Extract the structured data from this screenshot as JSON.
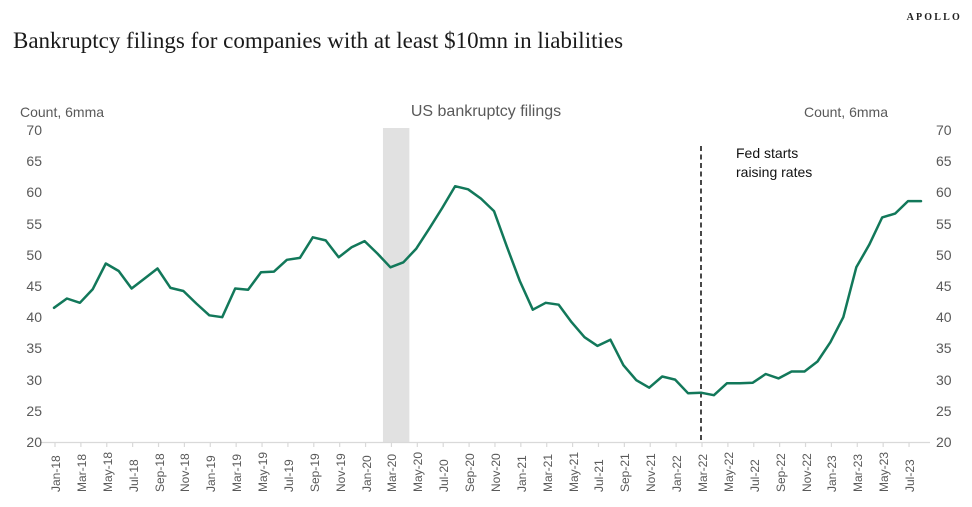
{
  "page": {
    "logo": "APOLLO",
    "title": "Bankruptcy filings for companies with at least $10mn in liabilities"
  },
  "chart": {
    "title": "US bankruptcy filings",
    "left_axis_label": "Count, 6mma",
    "right_axis_label": "Count, 6mma",
    "annotation": {
      "line1": "Fed starts",
      "line2": "raising rates"
    }
  },
  "chart_data": {
    "type": "line",
    "title": "US bankruptcy filings",
    "ylabel": "Count, 6mma",
    "ylim": [
      20,
      70
    ],
    "dual_y_axis": true,
    "grid": false,
    "line_color": "#12785A",
    "x": [
      "Jan-18",
      "Feb-18",
      "Mar-18",
      "Apr-18",
      "May-18",
      "Jun-18",
      "Jul-18",
      "Aug-18",
      "Sep-18",
      "Oct-18",
      "Nov-18",
      "Dec-18",
      "Jan-19",
      "Feb-19",
      "Mar-19",
      "Apr-19",
      "May-19",
      "Jun-19",
      "Jul-19",
      "Aug-19",
      "Sep-19",
      "Oct-19",
      "Nov-19",
      "Dec-19",
      "Jan-20",
      "Feb-20",
      "Mar-20",
      "Apr-20",
      "May-20",
      "Jun-20",
      "Jul-20",
      "Aug-20",
      "Sep-20",
      "Oct-20",
      "Nov-20",
      "Dec-20",
      "Jan-21",
      "Feb-21",
      "Mar-21",
      "Apr-21",
      "May-21",
      "Jun-21",
      "Jul-21",
      "Aug-21",
      "Sep-21",
      "Oct-21",
      "Nov-21",
      "Dec-21",
      "Jan-22",
      "Feb-22",
      "Mar-22",
      "Apr-22",
      "May-22",
      "Jun-22",
      "Jul-22",
      "Aug-22",
      "Sep-22",
      "Oct-22",
      "Nov-22",
      "Dec-22",
      "Jan-23",
      "Feb-23",
      "Mar-23",
      "Apr-23",
      "May-23",
      "Jun-23",
      "Jul-23",
      "Aug-23"
    ],
    "values": [
      41.5,
      43.0,
      42.3,
      44.5,
      48.6,
      47.4,
      44.6,
      46.2,
      47.8,
      44.7,
      44.2,
      42.2,
      40.3,
      40.0,
      44.6,
      44.4,
      47.2,
      47.3,
      49.2,
      49.5,
      52.8,
      52.3,
      49.6,
      51.2,
      52.2,
      50.2,
      48.0,
      48.8,
      51.0,
      54.2,
      57.5,
      61.0,
      60.5,
      59.0,
      57.0,
      51.3,
      45.8,
      41.2,
      42.3,
      42.0,
      39.2,
      36.8,
      35.4,
      36.4,
      32.3,
      29.9,
      28.7,
      30.5,
      30.0,
      27.8,
      27.9,
      27.5,
      29.4,
      29.4,
      29.5,
      30.9,
      30.2,
      31.3,
      31.3,
      32.9,
      36.0,
      40.0,
      48.0,
      51.6,
      56.0,
      56.6,
      58.6,
      58.6
    ],
    "x_tick_labels": [
      "Jan-18",
      "Mar-18",
      "May-18",
      "Jul-18",
      "Sep-18",
      "Nov-18",
      "Jan-19",
      "Mar-19",
      "May-19",
      "Jul-19",
      "Sep-19",
      "Nov-19",
      "Jan-20",
      "Mar-20",
      "May-20",
      "Jul-20",
      "Sep-20",
      "Nov-20",
      "Jan-21",
      "Mar-21",
      "May-21",
      "Jul-21",
      "Sep-21",
      "Nov-21",
      "Jan-22",
      "Mar-22",
      "May-22",
      "Jul-22",
      "Sep-22",
      "Nov-22",
      "Jan-23",
      "Mar-23",
      "May-23",
      "Jul-23"
    ],
    "y_ticks": [
      70,
      65,
      60,
      55,
      50,
      45,
      40,
      35,
      30,
      25,
      20
    ],
    "recession_band": {
      "from": "Mar-20",
      "to": "Apr-20",
      "color": "#e1e1e1"
    },
    "event_line": {
      "month": "Mar-22",
      "style": "dashed",
      "color": "#1a1a1a",
      "label": "Fed starts raising rates"
    }
  }
}
